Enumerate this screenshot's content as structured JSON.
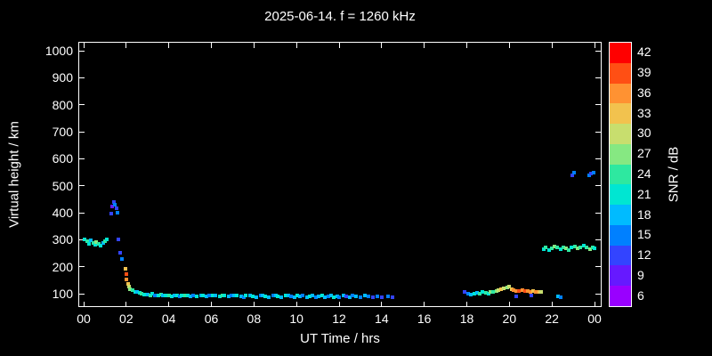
{
  "colors": {
    "background": "#000000",
    "text": "#ffffff",
    "axis": "#ffffff"
  },
  "chart_data": {
    "type": "scatter",
    "title": "2025-06-14. f = 1260 kHz",
    "xlabel": "UT Time / hrs",
    "ylabel": "Virtual height / km",
    "xlim": [
      0,
      24
    ],
    "ylim": [
      100,
      1000
    ],
    "grid": false,
    "x_ticks": [
      "00",
      "02",
      "04",
      "06",
      "08",
      "10",
      "12",
      "14",
      "16",
      "18",
      "20",
      "22",
      "00"
    ],
    "x_tick_hours": [
      0,
      2,
      4,
      6,
      8,
      10,
      12,
      14,
      16,
      18,
      20,
      22,
      24
    ],
    "y_ticks": [
      100,
      200,
      300,
      400,
      500,
      600,
      700,
      800,
      900,
      1000
    ],
    "colorbar": {
      "label": "SNR / dB",
      "ticks": [
        42,
        39,
        36,
        33,
        30,
        27,
        24,
        21,
        18,
        15,
        12,
        9,
        6
      ],
      "color_map": {
        "6": "#9900ff",
        "9": "#6619ff",
        "12": "#3344ff",
        "15": "#0080ff",
        "18": "#00bbff",
        "21": "#00e6d2",
        "24": "#2ee8a0",
        "27": "#86e882",
        "30": "#c8de6e",
        "33": "#f2c24e",
        "36": "#ff9232",
        "39": "#ff4f14",
        "42": "#ff0000"
      }
    },
    "points_format": [
      "ut_hours",
      "virtual_height_km",
      "snr_db"
    ],
    "points": [
      [
        0.05,
        300,
        21
      ],
      [
        0.15,
        293,
        24
      ],
      [
        0.25,
        285,
        21
      ],
      [
        0.35,
        298,
        18
      ],
      [
        0.45,
        288,
        24
      ],
      [
        0.55,
        280,
        21
      ],
      [
        0.6,
        292,
        27
      ],
      [
        0.7,
        284,
        24
      ],
      [
        0.8,
        279,
        21
      ],
      [
        0.9,
        288,
        18
      ],
      [
        1.0,
        295,
        24
      ],
      [
        1.1,
        300,
        21
      ],
      [
        1.3,
        398,
        12
      ],
      [
        1.35,
        424,
        9
      ],
      [
        1.42,
        440,
        12
      ],
      [
        1.48,
        430,
        15
      ],
      [
        1.55,
        415,
        12
      ],
      [
        1.6,
        400,
        15
      ],
      [
        1.62,
        300,
        12
      ],
      [
        1.7,
        252,
        12
      ],
      [
        1.8,
        230,
        15
      ],
      [
        1.95,
        192,
        33
      ],
      [
        2.0,
        172,
        39
      ],
      [
        2.02,
        152,
        36
      ],
      [
        2.08,
        136,
        33
      ],
      [
        2.12,
        126,
        30
      ],
      [
        2.18,
        118,
        27
      ],
      [
        2.3,
        112,
        24
      ],
      [
        2.42,
        108,
        21
      ],
      [
        2.52,
        105,
        18
      ],
      [
        2.62,
        102,
        21
      ],
      [
        2.72,
        100,
        24
      ],
      [
        2.85,
        98,
        21
      ],
      [
        3.0,
        97,
        18
      ],
      [
        3.12,
        95,
        24
      ],
      [
        3.22,
        100,
        21
      ],
      [
        3.35,
        95,
        15
      ],
      [
        3.5,
        93,
        21
      ],
      [
        3.62,
        97,
        24
      ],
      [
        3.72,
        92,
        18
      ],
      [
        3.85,
        95,
        21
      ],
      [
        4.0,
        93,
        24
      ],
      [
        4.12,
        90,
        21
      ],
      [
        4.25,
        92,
        18
      ],
      [
        4.4,
        95,
        21
      ],
      [
        4.52,
        90,
        15
      ],
      [
        4.62,
        93,
        21
      ],
      [
        4.75,
        95,
        24
      ],
      [
        4.9,
        92,
        21
      ],
      [
        5.02,
        90,
        18
      ],
      [
        5.15,
        93,
        15
      ],
      [
        5.3,
        90,
        21
      ],
      [
        5.5,
        92,
        18
      ],
      [
        5.62,
        95,
        21
      ],
      [
        5.75,
        90,
        18
      ],
      [
        5.9,
        93,
        15
      ],
      [
        6.05,
        95,
        21
      ],
      [
        6.2,
        92,
        18
      ],
      [
        6.4,
        90,
        21
      ],
      [
        6.52,
        95,
        24
      ],
      [
        6.62,
        92,
        21
      ],
      [
        6.8,
        90,
        18
      ],
      [
        6.92,
        93,
        15
      ],
      [
        7.05,
        95,
        18
      ],
      [
        7.2,
        92,
        21
      ],
      [
        7.4,
        90,
        18
      ],
      [
        7.52,
        88,
        15
      ],
      [
        7.62,
        92,
        21
      ],
      [
        7.8,
        95,
        18
      ],
      [
        7.95,
        90,
        21
      ],
      [
        8.1,
        88,
        18
      ],
      [
        8.3,
        92,
        15
      ],
      [
        8.42,
        95,
        18
      ],
      [
        8.55,
        90,
        21
      ],
      [
        8.7,
        88,
        18
      ],
      [
        8.9,
        92,
        15
      ],
      [
        9.02,
        95,
        18
      ],
      [
        9.12,
        90,
        21
      ],
      [
        9.3,
        88,
        18
      ],
      [
        9.5,
        92,
        21
      ],
      [
        9.62,
        95,
        18
      ],
      [
        9.75,
        90,
        15
      ],
      [
        9.9,
        88,
        18
      ],
      [
        10.02,
        92,
        21
      ],
      [
        10.15,
        90,
        18
      ],
      [
        10.3,
        95,
        15
      ],
      [
        10.5,
        88,
        18
      ],
      [
        10.62,
        90,
        21
      ],
      [
        10.75,
        92,
        18
      ],
      [
        10.9,
        88,
        15
      ],
      [
        11.02,
        90,
        18
      ],
      [
        11.2,
        95,
        21
      ],
      [
        11.32,
        88,
        18
      ],
      [
        11.5,
        90,
        15
      ],
      [
        11.62,
        92,
        18
      ],
      [
        11.75,
        88,
        21
      ],
      [
        11.9,
        90,
        18
      ],
      [
        12.02,
        88,
        15
      ],
      [
        12.2,
        92,
        18
      ],
      [
        12.32,
        90,
        12
      ],
      [
        12.5,
        88,
        18
      ],
      [
        12.62,
        92,
        15
      ],
      [
        12.8,
        90,
        18
      ],
      [
        13.0,
        88,
        15
      ],
      [
        13.2,
        92,
        18
      ],
      [
        13.4,
        90,
        15
      ],
      [
        13.6,
        88,
        12
      ],
      [
        13.8,
        90,
        15
      ],
      [
        14.0,
        88,
        12
      ],
      [
        14.3,
        90,
        15
      ],
      [
        14.5,
        88,
        12
      ],
      [
        17.9,
        105,
        12
      ],
      [
        18.05,
        100,
        15
      ],
      [
        18.2,
        98,
        18
      ],
      [
        18.35,
        100,
        21
      ],
      [
        18.5,
        103,
        18
      ],
      [
        18.62,
        100,
        24
      ],
      [
        18.75,
        105,
        21
      ],
      [
        18.9,
        102,
        24
      ],
      [
        19.02,
        100,
        21
      ],
      [
        19.12,
        105,
        27
      ],
      [
        19.25,
        108,
        24
      ],
      [
        19.4,
        110,
        27
      ],
      [
        19.5,
        112,
        30
      ],
      [
        19.62,
        116,
        33
      ],
      [
        19.75,
        119,
        30
      ],
      [
        19.9,
        123,
        27
      ],
      [
        20.0,
        126,
        30
      ],
      [
        20.1,
        116,
        33
      ],
      [
        20.2,
        112,
        36
      ],
      [
        20.3,
        110,
        36
      ],
      [
        20.32,
        90,
        12
      ],
      [
        20.45,
        110,
        39
      ],
      [
        20.6,
        112,
        36
      ],
      [
        20.72,
        110,
        39
      ],
      [
        20.85,
        110,
        36
      ],
      [
        21.0,
        108,
        36
      ],
      [
        21.02,
        92,
        12
      ],
      [
        21.12,
        110,
        33
      ],
      [
        21.25,
        108,
        36
      ],
      [
        21.4,
        108,
        33
      ],
      [
        21.5,
        105,
        30
      ],
      [
        21.6,
        265,
        21
      ],
      [
        21.72,
        270,
        24
      ],
      [
        21.85,
        262,
        21
      ],
      [
        22.0,
        268,
        24
      ],
      [
        22.12,
        275,
        27
      ],
      [
        22.25,
        270,
        24
      ],
      [
        22.3,
        90,
        18
      ],
      [
        22.4,
        265,
        21
      ],
      [
        22.42,
        88,
        15
      ],
      [
        22.52,
        272,
        24
      ],
      [
        22.65,
        268,
        27
      ],
      [
        22.8,
        262,
        24
      ],
      [
        22.9,
        270,
        21
      ],
      [
        22.95,
        540,
        12
      ],
      [
        23.05,
        548,
        15
      ],
      [
        23.08,
        275,
        24
      ],
      [
        23.2,
        268,
        27
      ],
      [
        23.35,
        272,
        24
      ],
      [
        23.5,
        278,
        21
      ],
      [
        23.62,
        270,
        24
      ],
      [
        23.75,
        538,
        15
      ],
      [
        23.78,
        265,
        27
      ],
      [
        23.85,
        545,
        12
      ],
      [
        23.9,
        272,
        24
      ],
      [
        23.95,
        550,
        15
      ],
      [
        24.0,
        268,
        21
      ]
    ]
  }
}
